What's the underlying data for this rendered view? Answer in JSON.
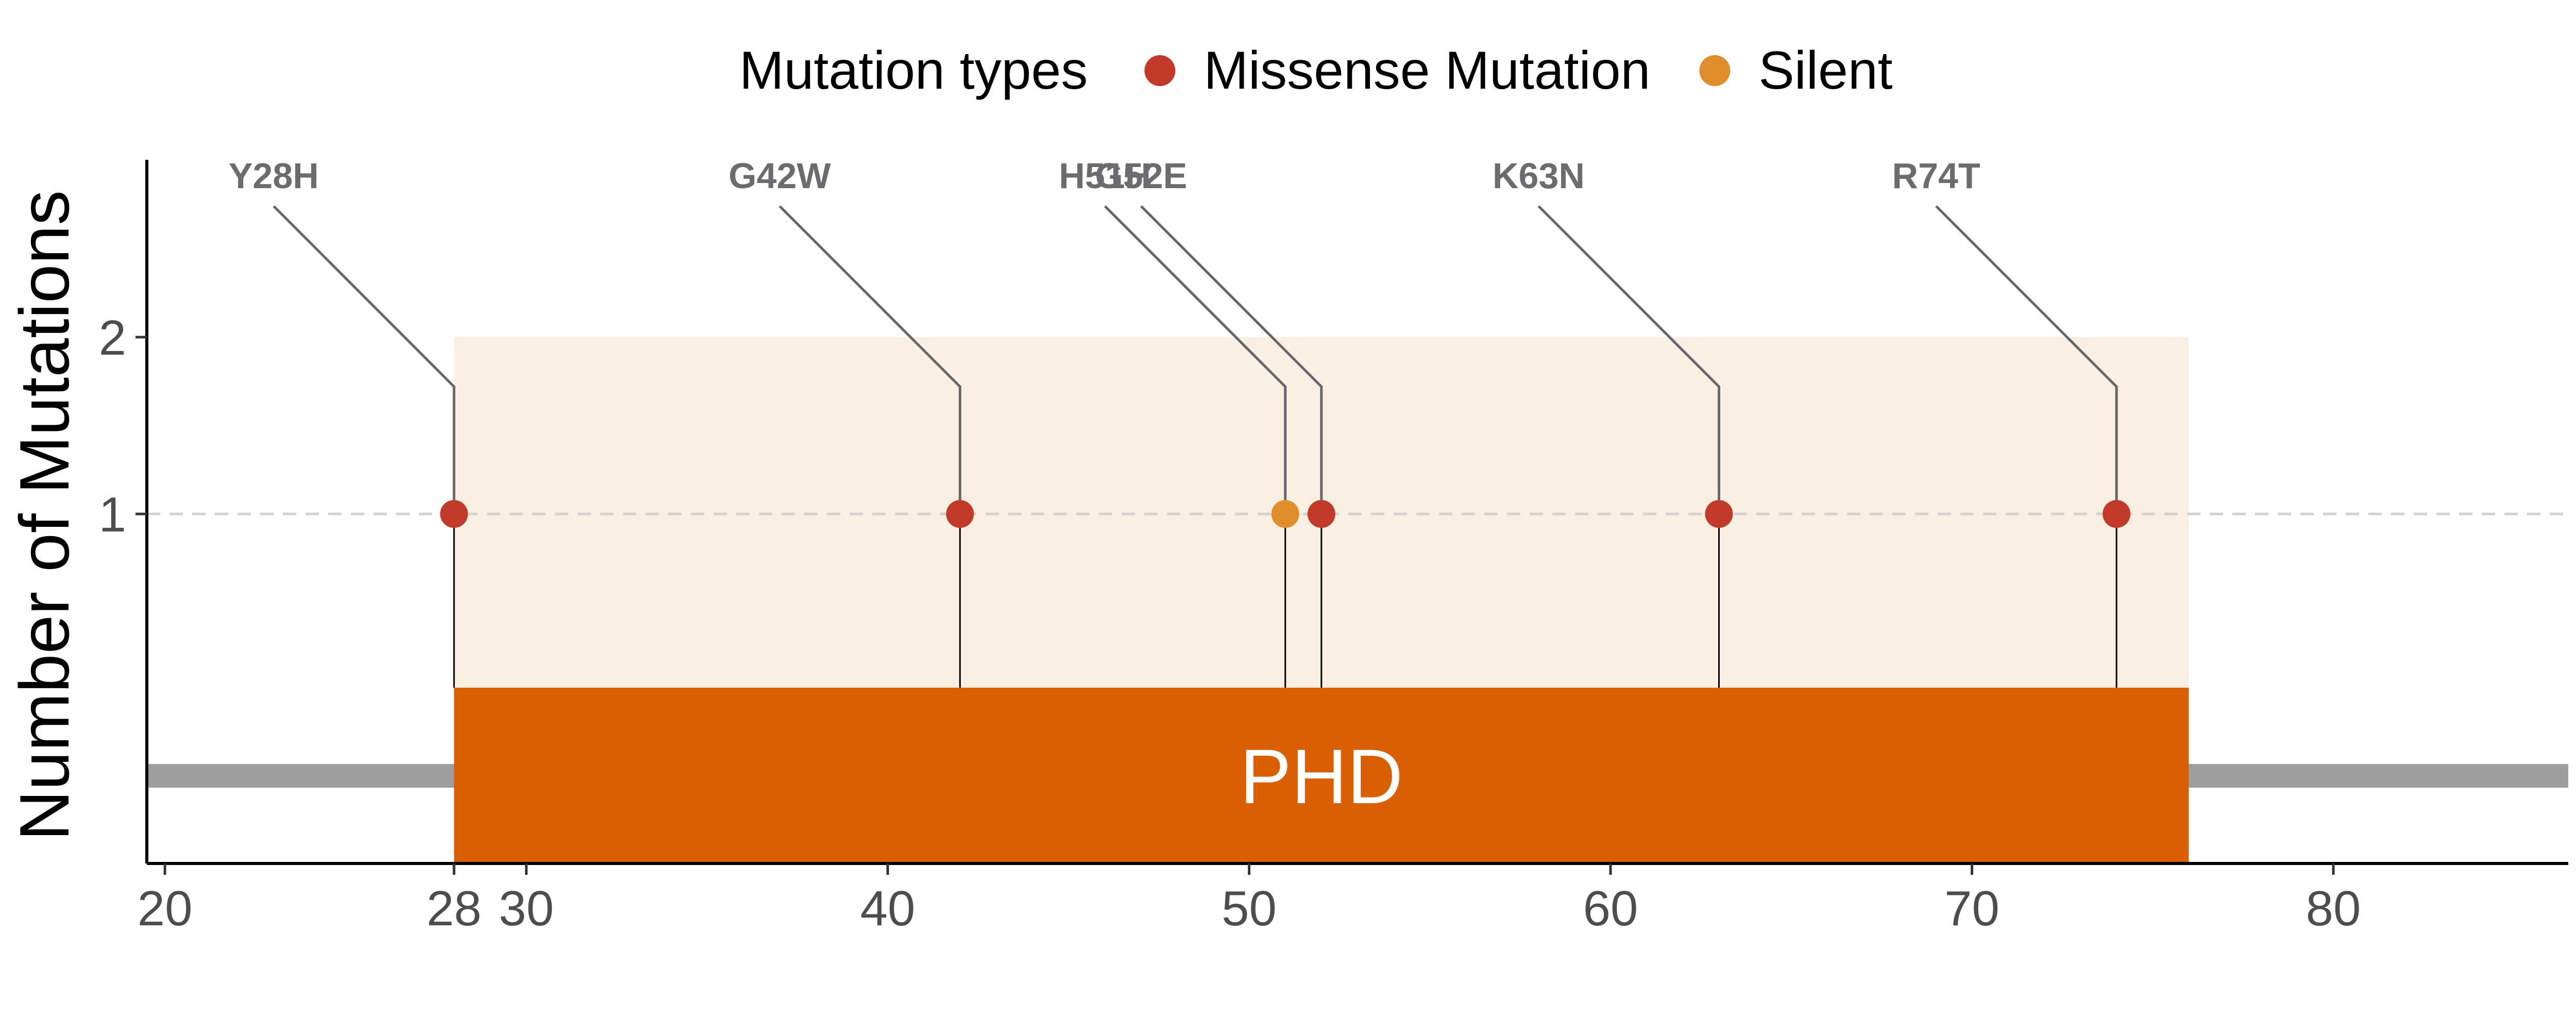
{
  "chart_data": {
    "type": "lollipop",
    "ylabel": "Number of Mutations",
    "xlim": [
      19.5,
      86.5
    ],
    "x_ticks": [
      20,
      28,
      30,
      40,
      50,
      60,
      70,
      80
    ],
    "y_ticks": [
      1,
      2
    ],
    "legend": {
      "title": "Mutation types",
      "placement": "top",
      "entries": [
        {
          "name": "Missense Mutation",
          "color": "#c23b2a"
        },
        {
          "name": "Silent",
          "color": "#e08e2b"
        }
      ]
    },
    "mutations": [
      {
        "label": "Y28H",
        "position": 28,
        "count": 1,
        "type": "Missense Mutation"
      },
      {
        "label": "G42W",
        "position": 42,
        "count": 1,
        "type": "Missense Mutation"
      },
      {
        "label": "H51H",
        "position": 51,
        "count": 1,
        "type": "Silent"
      },
      {
        "label": "G52E",
        "position": 52,
        "count": 1,
        "type": "Missense Mutation"
      },
      {
        "label": "K63N",
        "position": 63,
        "count": 1,
        "type": "Missense Mutation"
      },
      {
        "label": "R74T",
        "position": 74,
        "count": 1,
        "type": "Missense Mutation"
      }
    ],
    "domains": [
      {
        "name": "PHD",
        "start": 28,
        "end": 76,
        "color": "#d95f02",
        "shade_color": "#f9f0e3"
      }
    ],
    "backbone_color": "#9e9e9e",
    "reference_line": {
      "y": 1,
      "style": "dashed",
      "color": "#d5cfcf"
    }
  }
}
